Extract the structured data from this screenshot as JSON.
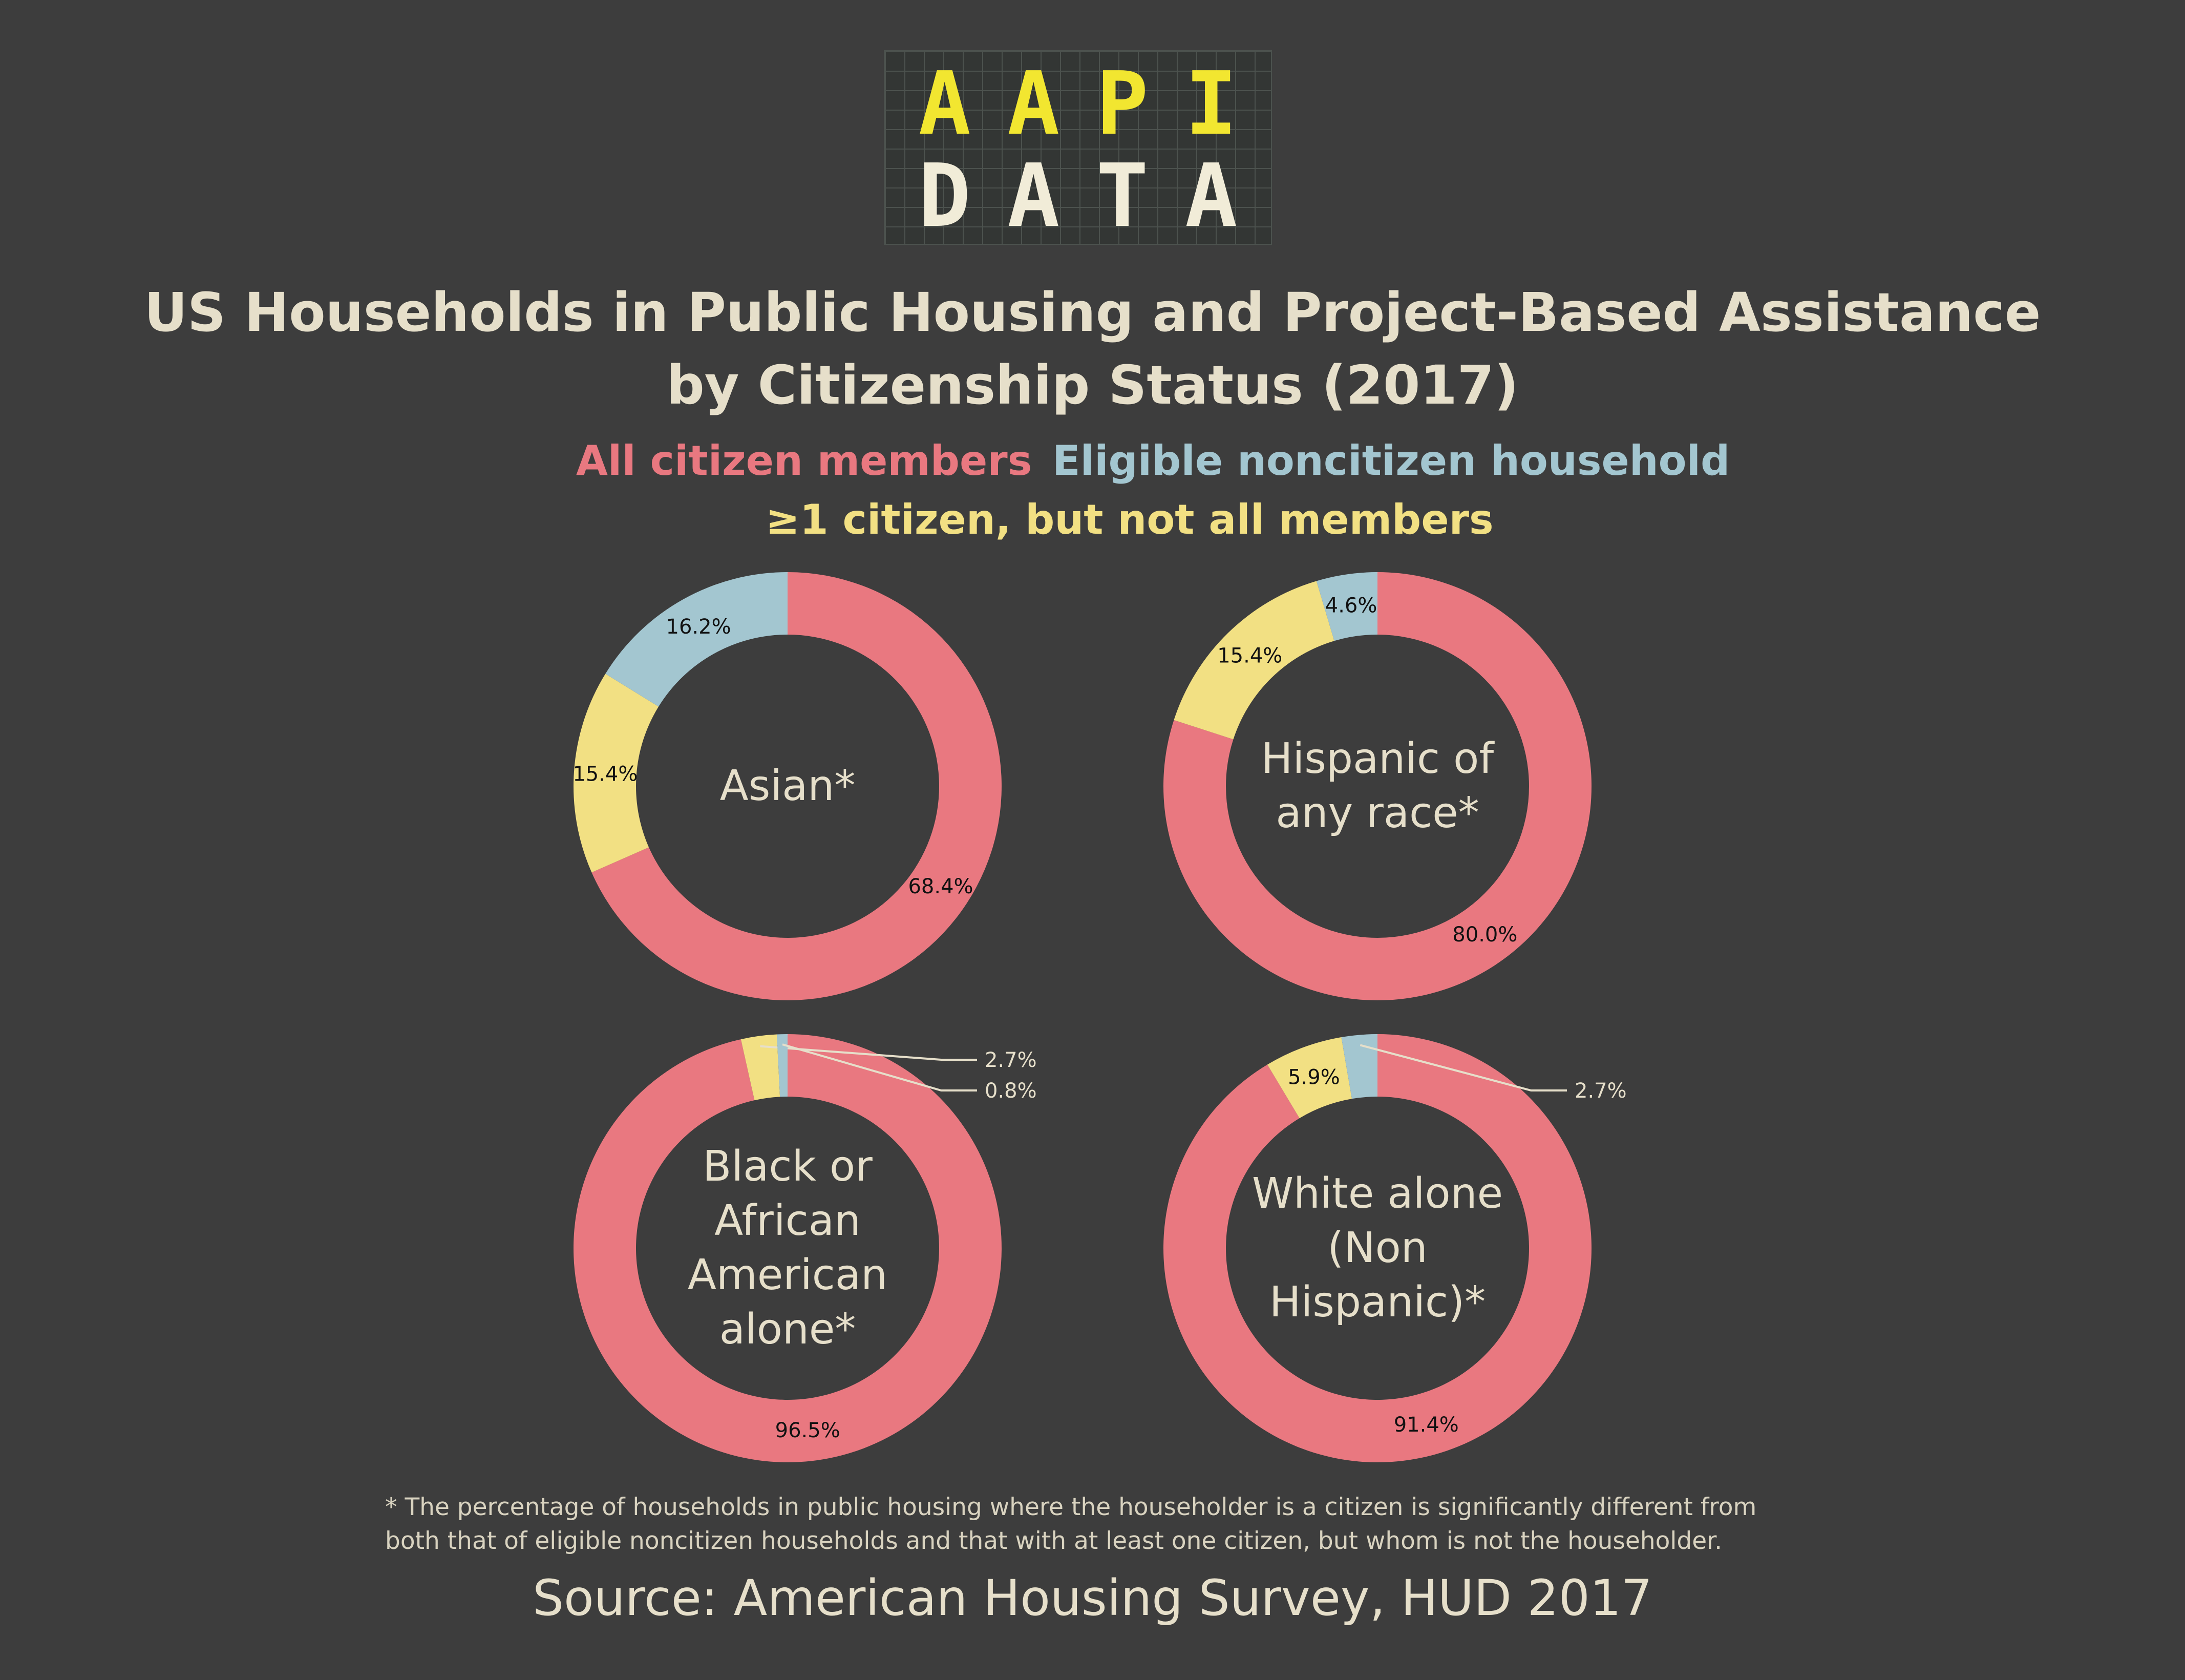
{
  "logo": {
    "line1": "AAPI",
    "line2": "DATA"
  },
  "title": {
    "line1": "US Households in Public Housing and Project-Based Assistance",
    "line2": "by Citizenship Status (2017)"
  },
  "colors": {
    "background": "#3d3d3d",
    "all_citizen": "#e97880",
    "eligible_noncitizen": "#a3c6d0",
    "partial_citizen": "#f2e083",
    "text": "#e6dfca"
  },
  "legend": [
    {
      "label": "All citizen members",
      "color": "#e97880"
    },
    {
      "label": "Eligible noncitizen household",
      "color": "#a3c6d0"
    },
    {
      "label": "≥1 citizen, but not all members",
      "color": "#f2e083"
    }
  ],
  "chart_data": [
    {
      "type": "pie",
      "center_label": [
        "Asian*"
      ],
      "slices": [
        {
          "name": "All citizen members",
          "value": 68.4,
          "label": "68.4%"
        },
        {
          "name": "≥1 citizen, but not all members",
          "value": 15.4,
          "label": "15.4%"
        },
        {
          "name": "Eligible noncitizen household",
          "value": 16.2,
          "label": "16.2%"
        }
      ]
    },
    {
      "type": "pie",
      "center_label": [
        "Hispanic of",
        "any race*"
      ],
      "slices": [
        {
          "name": "All citizen members",
          "value": 80.0,
          "label": "80.0%"
        },
        {
          "name": "≥1 citizen, but not all members",
          "value": 15.4,
          "label": "15.4%"
        },
        {
          "name": "Eligible noncitizen household",
          "value": 4.6,
          "label": "4.6%"
        }
      ]
    },
    {
      "type": "pie",
      "center_label": [
        "Black or",
        "African",
        "American",
        "alone*"
      ],
      "slices": [
        {
          "name": "All citizen members",
          "value": 96.5,
          "label": "96.5%"
        },
        {
          "name": "≥1 citizen, but not all members",
          "value": 2.7,
          "label": "2.7%"
        },
        {
          "name": "Eligible noncitizen household",
          "value": 0.8,
          "label": "0.8%"
        }
      ]
    },
    {
      "type": "pie",
      "center_label": [
        "White alone",
        "(Non",
        "Hispanic)*"
      ],
      "slices": [
        {
          "name": "All citizen members",
          "value": 91.4,
          "label": "91.4%"
        },
        {
          "name": "≥1 citizen, but not all members",
          "value": 5.9,
          "label": "5.9%"
        },
        {
          "name": "Eligible noncitizen household",
          "value": 2.7,
          "label": "2.7%"
        }
      ]
    }
  ],
  "footnote": {
    "line1": "* The percentage of households in public housing where the householder is a citizen is significantly different from",
    "line2": "both that of eligible noncitizen households and that with at least one citizen, but whom is not the householder."
  },
  "source": "Source: American Housing Survey, HUD 2017"
}
